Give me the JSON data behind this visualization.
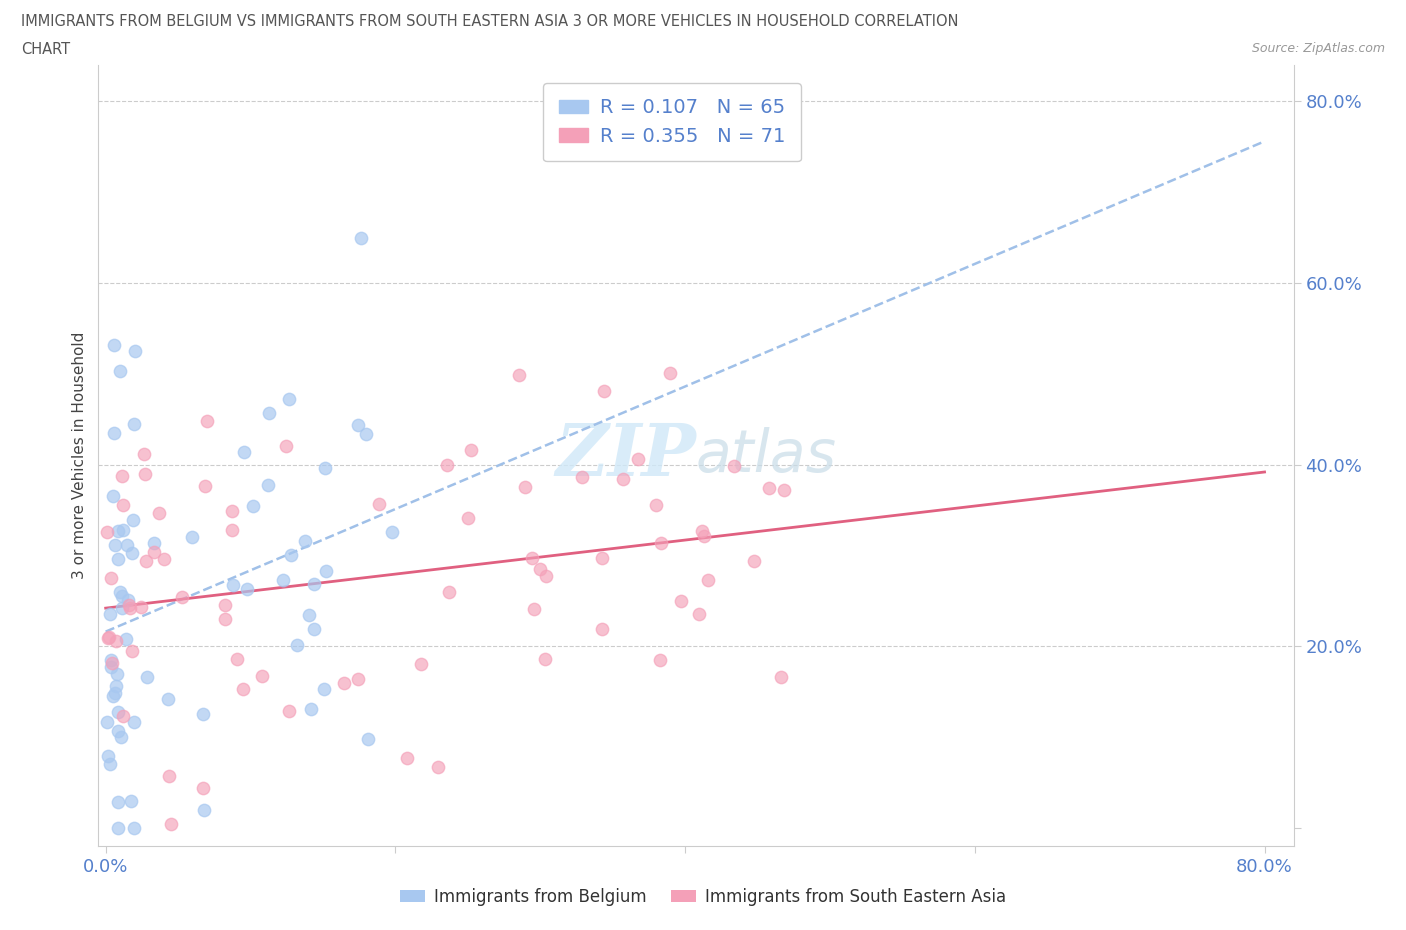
{
  "title_line1": "IMMIGRANTS FROM BELGIUM VS IMMIGRANTS FROM SOUTH EASTERN ASIA 3 OR MORE VEHICLES IN HOUSEHOLD CORRELATION",
  "title_line2": "CHART",
  "source_text": "Source: ZipAtlas.com",
  "ylabel": "3 or more Vehicles in Household",
  "legend_label1": "Immigrants from Belgium",
  "legend_label2": "Immigrants from South Eastern Asia",
  "r1": "0.107",
  "n1": "65",
  "r2": "0.355",
  "n2": "71",
  "color_belgium": "#a8c8f0",
  "color_sea": "#f4a0b8",
  "trendline_belgium_color": "#a0c0e8",
  "trendline_sea_color": "#e06080",
  "watermark_color": "#d0e8f8",
  "tick_color": "#5580cc",
  "title_color": "#555555",
  "source_color": "#999999",
  "grid_color": "#cccccc",
  "spine_color": "#cccccc"
}
